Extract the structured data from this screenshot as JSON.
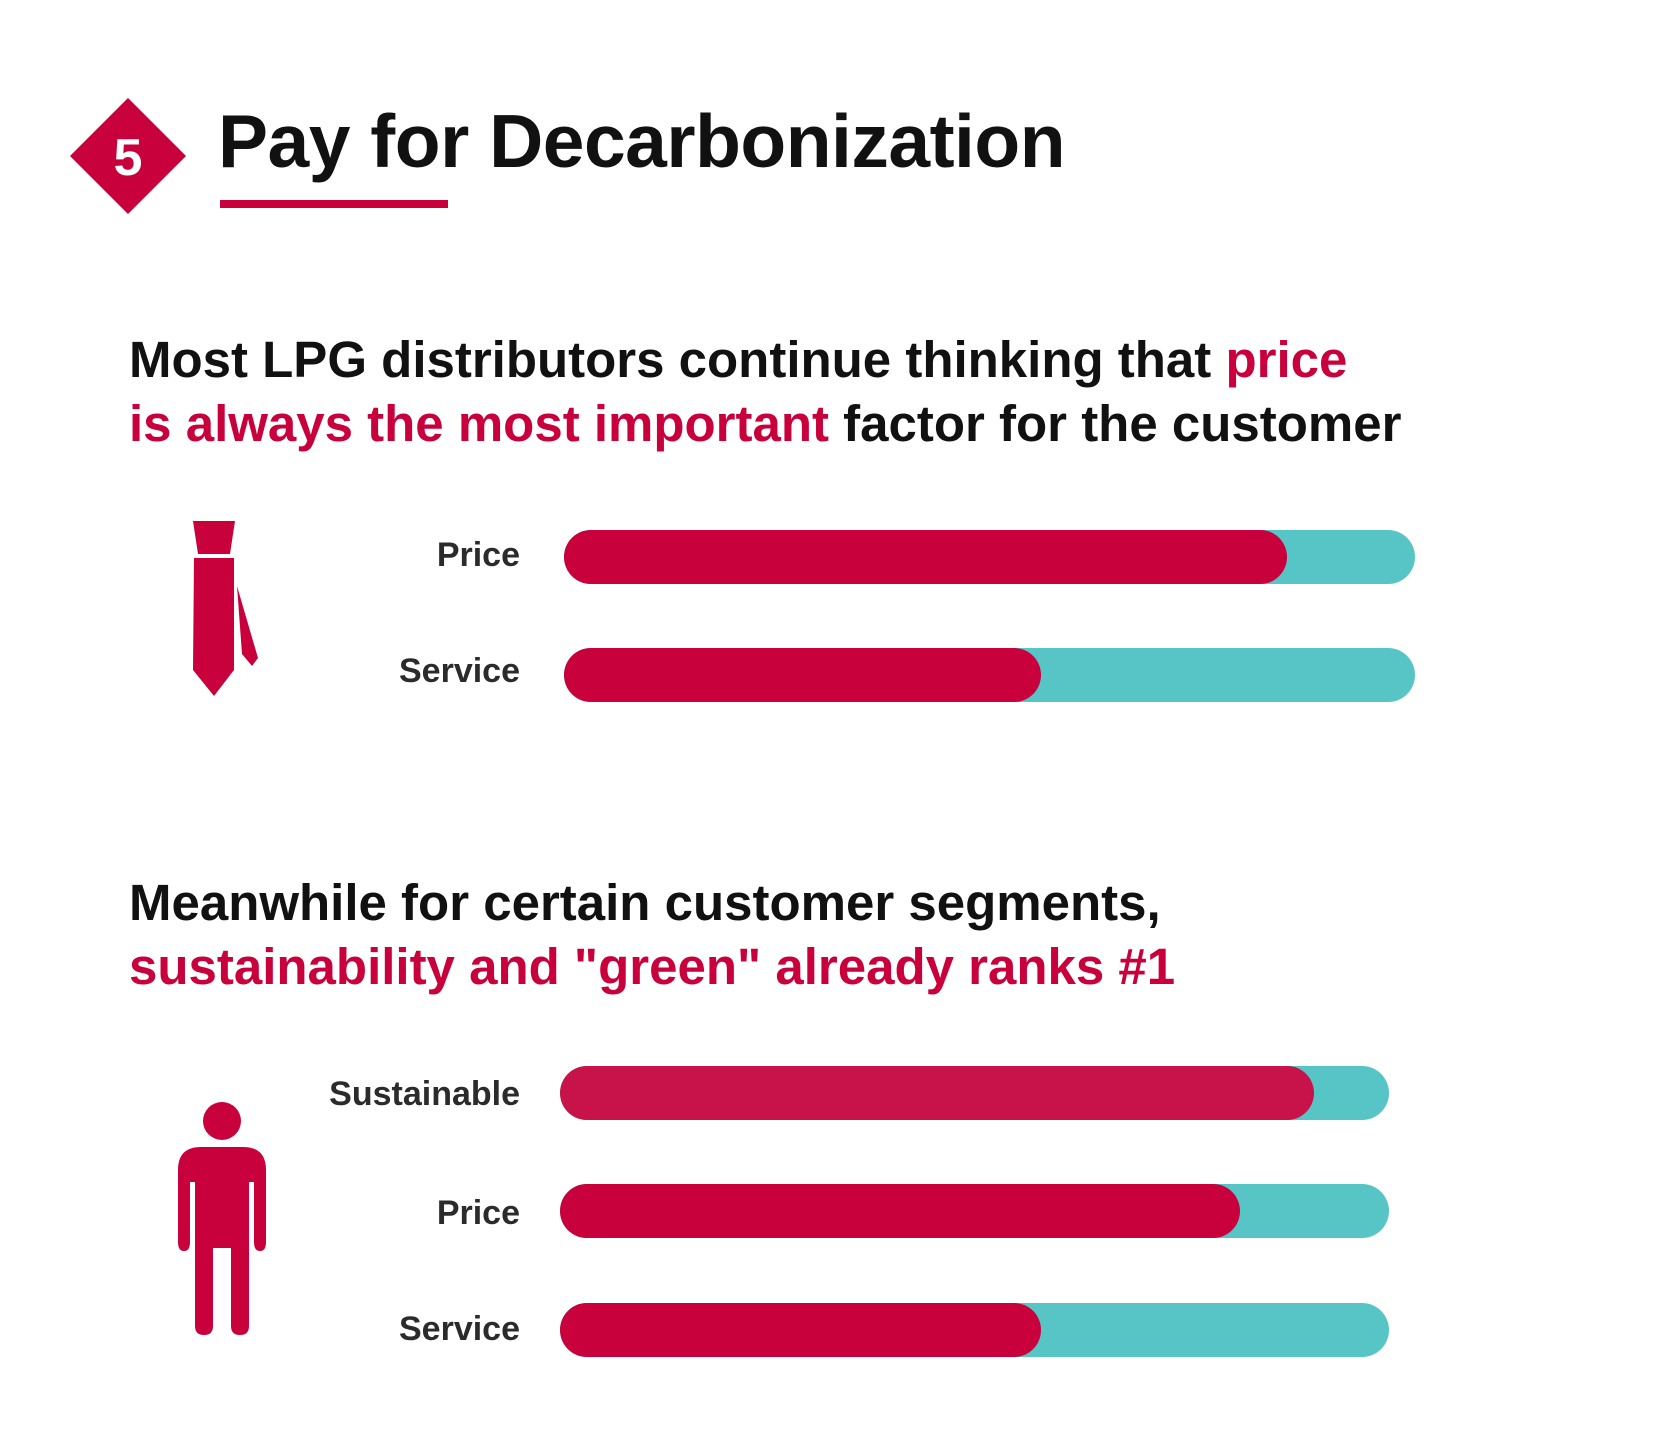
{
  "header": {
    "badge_number": "5",
    "title": "Pay for Decarbonization"
  },
  "colors": {
    "accent": "#c8003c",
    "accent_alt": "#c8124a",
    "remainder": "#57c4c6",
    "text": "#111111",
    "label": "#2b2b2b"
  },
  "sections": [
    {
      "headline_line1_plain": "Most LPG distributors continue thinking that ",
      "headline_line1_highlight": "price",
      "headline_line2_highlight": "is always the most important",
      "headline_line2_plain": " factor for the customer",
      "icon": "necktie-icon"
    },
    {
      "headline_line1_plain": "Meanwhile for certain customer segments,",
      "headline_line2_highlight": "sustainability and \"green\" already ranks #1",
      "icon": "person-icon"
    }
  ],
  "chart_data": [
    {
      "type": "bar",
      "orientation": "horizontal",
      "stacked_to_100": true,
      "title": "Most LPG distributors continue thinking that price is always the most important factor for the customer",
      "categories": [
        "Price",
        "Service"
      ],
      "series": [
        {
          "name": "share",
          "color": "#c8003c",
          "values": [
            85,
            56
          ]
        },
        {
          "name": "remainder",
          "color": "#57c4c6",
          "values": [
            15,
            44
          ]
        }
      ],
      "xlim": [
        0,
        100
      ],
      "axis": false,
      "grid": false
    },
    {
      "type": "bar",
      "orientation": "horizontal",
      "stacked_to_100": true,
      "title": "Meanwhile for certain customer segments, sustainability and \"green\" already ranks #1",
      "categories": [
        "Sustainable",
        "Price",
        "Service"
      ],
      "series": [
        {
          "name": "share",
          "colors": [
            "#c8124a",
            "#c8003c",
            "#c8003c"
          ],
          "values": [
            91,
            82,
            58
          ]
        },
        {
          "name": "remainder",
          "color": "#57c4c6",
          "values": [
            9,
            18,
            42
          ]
        }
      ],
      "xlim": [
        0,
        100
      ],
      "axis": false,
      "grid": false
    }
  ]
}
